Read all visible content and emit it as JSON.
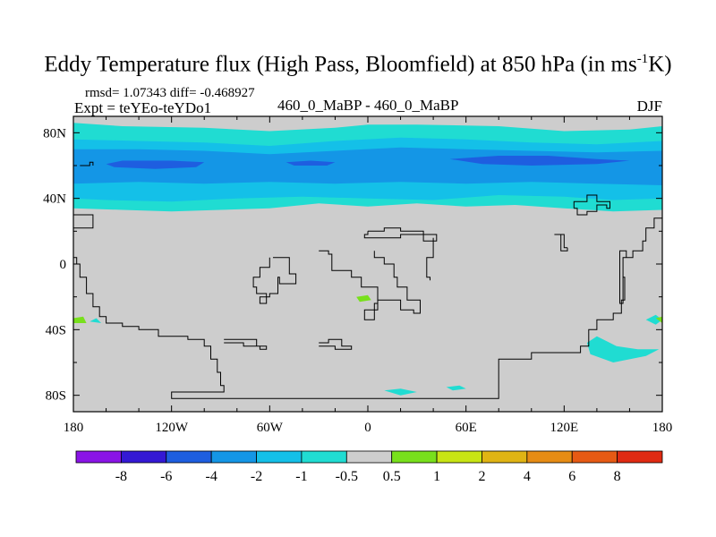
{
  "title": {
    "main": "Eddy Temperature flux (High Pass, Bloomfield) at 850 hPa (in ms",
    "sup": "-1",
    "end": "K)"
  },
  "stats": {
    "rmsd_label": "rmsd=",
    "rmsd_value": "1.07343",
    "diff_label": "diff=",
    "diff_value": "-0.468927"
  },
  "expt": "Expt = teYEo-teYDo1",
  "diff_name": "460_0_MaBP - 460_0_MaBP",
  "season": "DJF",
  "chart_data": {
    "type": "heatmap",
    "projection": "cylindrical-equidistant",
    "xlim": [
      -180,
      180
    ],
    "ylim": [
      -90,
      90
    ],
    "x_ticks": [
      {
        "value": -180,
        "label": "180"
      },
      {
        "value": -120,
        "label": "120W"
      },
      {
        "value": -60,
        "label": "60W"
      },
      {
        "value": 0,
        "label": "0"
      },
      {
        "value": 60,
        "label": "60E"
      },
      {
        "value": 120,
        "label": "120E"
      },
      {
        "value": 180,
        "label": "180"
      }
    ],
    "y_ticks": [
      {
        "value": 80,
        "label": "80N"
      },
      {
        "value": 40,
        "label": "40N"
      },
      {
        "value": 0,
        "label": "0"
      },
      {
        "value": -40,
        "label": "40S"
      },
      {
        "value": -80,
        "label": "80S"
      }
    ],
    "background_color": "#cdcdcd",
    "contour_levels": [
      -8,
      -6,
      -4,
      -2,
      -1,
      -0.5,
      0.5,
      1,
      2,
      4,
      6,
      8
    ],
    "colorbar_colors": [
      "#8a14e6",
      "#3419d4",
      "#1e5ee0",
      "#1496e6",
      "#14c0e8",
      "#20dcd2",
      "#cdcdcd",
      "#78e01c",
      "#c8e414",
      "#e0b414",
      "#e68c14",
      "#e65a14",
      "#e02a12"
    ],
    "colorbar_labels": [
      "-8",
      "-6",
      "-4",
      "-2",
      "-1",
      "-0.5",
      "0.5",
      "1",
      "2",
      "4",
      "6",
      "8"
    ],
    "regions": [
      {
        "level": "-1 to -0.5",
        "color": "#20dcd2",
        "points": [
          [
            -180,
            86
          ],
          [
            -150,
            84
          ],
          [
            -100,
            83
          ],
          [
            -60,
            81
          ],
          [
            -20,
            83
          ],
          [
            0,
            85
          ],
          [
            30,
            85
          ],
          [
            80,
            84
          ],
          [
            120,
            81
          ],
          [
            160,
            82
          ],
          [
            180,
            84
          ],
          [
            180,
            33
          ],
          [
            150,
            32
          ],
          [
            120,
            34
          ],
          [
            90,
            36
          ],
          [
            60,
            35
          ],
          [
            30,
            37
          ],
          [
            0,
            35
          ],
          [
            -30,
            37
          ],
          [
            -60,
            34
          ],
          [
            -90,
            33
          ],
          [
            -120,
            32
          ],
          [
            -150,
            33
          ],
          [
            -180,
            34
          ]
        ]
      },
      {
        "level": "-2 to -1",
        "color": "#14c0e8",
        "points": [
          [
            -180,
            76
          ],
          [
            -140,
            75
          ],
          [
            -100,
            74
          ],
          [
            -60,
            72
          ],
          [
            -20,
            75
          ],
          [
            20,
            77
          ],
          [
            60,
            76
          ],
          [
            100,
            74
          ],
          [
            140,
            73
          ],
          [
            180,
            75
          ],
          [
            180,
            40
          ],
          [
            150,
            39
          ],
          [
            120,
            41
          ],
          [
            80,
            42
          ],
          [
            40,
            39
          ],
          [
            0,
            40
          ],
          [
            -40,
            41
          ],
          [
            -80,
            40
          ],
          [
            -120,
            38
          ],
          [
            -160,
            39
          ],
          [
            -180,
            40
          ]
        ]
      },
      {
        "level": "-4 to -2",
        "color": "#1496e6",
        "points": [
          [
            -180,
            70
          ],
          [
            -140,
            70
          ],
          [
            -100,
            69
          ],
          [
            -60,
            67
          ],
          [
            -20,
            69
          ],
          [
            20,
            71
          ],
          [
            60,
            70
          ],
          [
            100,
            69
          ],
          [
            140,
            68
          ],
          [
            180,
            69
          ],
          [
            180,
            48
          ],
          [
            140,
            49
          ],
          [
            100,
            50
          ],
          [
            60,
            49
          ],
          [
            20,
            50
          ],
          [
            -20,
            49
          ],
          [
            -60,
            50
          ],
          [
            -100,
            49
          ],
          [
            -140,
            50
          ],
          [
            -180,
            49
          ]
        ]
      },
      {
        "level": "< -4",
        "color": "#1e5ee0",
        "points": [
          [
            -160,
            61
          ],
          [
            -150,
            63
          ],
          [
            -120,
            63
          ],
          [
            -100,
            62
          ],
          [
            -105,
            59
          ],
          [
            -130,
            58
          ],
          [
            -155,
            59
          ]
        ]
      },
      {
        "level": "< -4",
        "color": "#1e5ee0",
        "points": [
          [
            -50,
            62
          ],
          [
            -35,
            63
          ],
          [
            -20,
            62
          ],
          [
            -25,
            60
          ],
          [
            -45,
            60
          ]
        ]
      },
      {
        "level": "< -4",
        "color": "#1e5ee0",
        "points": [
          [
            50,
            64
          ],
          [
            80,
            66
          ],
          [
            110,
            66
          ],
          [
            140,
            64
          ],
          [
            160,
            63
          ],
          [
            140,
            61
          ],
          [
            100,
            60
          ],
          [
            70,
            61
          ]
        ]
      },
      {
        "level": "-1 to -0.5",
        "color": "#20dcd2",
        "points": [
          [
            134,
            -48
          ],
          [
            140,
            -44
          ],
          [
            152,
            -50
          ],
          [
            165,
            -52
          ],
          [
            178,
            -52
          ],
          [
            170,
            -56
          ],
          [
            150,
            -60
          ],
          [
            136,
            -55
          ]
        ]
      },
      {
        "level": "-1 to -0.5",
        "color": "#20dcd2",
        "points": [
          [
            170,
            -34
          ],
          [
            176,
            -31
          ],
          [
            180,
            -34
          ],
          [
            176,
            -37
          ]
        ]
      },
      {
        "level": "-1 to -0.5",
        "color": "#20dcd2",
        "points": [
          [
            10,
            -77
          ],
          [
            20,
            -76
          ],
          [
            30,
            -78
          ],
          [
            20,
            -80
          ]
        ]
      },
      {
        "level": "-1 to -0.5",
        "color": "#20dcd2",
        "points": [
          [
            48,
            -75
          ],
          [
            56,
            -74
          ],
          [
            60,
            -76
          ],
          [
            52,
            -77
          ]
        ]
      },
      {
        "level": "-1 to -0.5",
        "color": "#20dcd2",
        "points": [
          [
            -170,
            -35
          ],
          [
            -166,
            -33
          ],
          [
            -163,
            -36
          ]
        ]
      },
      {
        "level": "0.5 to 1",
        "color": "#78e01c",
        "points": [
          [
            -7,
            -20
          ],
          [
            0,
            -19
          ],
          [
            2,
            -22
          ],
          [
            -5,
            -23
          ]
        ]
      },
      {
        "level": "0.5 to 1",
        "color": "#78e01c",
        "points": [
          [
            -180,
            -33
          ],
          [
            -174,
            -32
          ],
          [
            -172,
            -36
          ],
          [
            -180,
            -36
          ]
        ]
      },
      {
        "level": "0.5 to 1",
        "color": "#78e01c",
        "points": [
          [
            176,
            -33
          ],
          [
            180,
            -32
          ],
          [
            180,
            -36
          ]
        ]
      }
    ],
    "coastlines": [
      [
        [
          -180,
          30
        ],
        [
          -168,
          28
        ],
        [
          -168,
          22
        ],
        [
          -180,
          22
        ]
      ],
      [
        [
          -180,
          4
        ],
        [
          -178,
          0
        ],
        [
          -176,
          -8
        ],
        [
          -172,
          -18
        ],
        [
          -168,
          -26
        ],
        [
          -164,
          -32
        ],
        [
          -160,
          -36
        ],
        [
          -150,
          -38
        ],
        [
          -140,
          -40
        ],
        [
          -128,
          -44
        ],
        [
          -110,
          -46
        ],
        [
          -100,
          -50
        ],
        [
          -96,
          -58
        ],
        [
          -92,
          -66
        ],
        [
          -90,
          -74
        ],
        [
          -88,
          -78
        ],
        [
          -120,
          -78
        ],
        [
          -120,
          -82
        ],
        [
          80,
          -82
        ],
        [
          80,
          -58
        ],
        [
          100,
          -54
        ],
        [
          130,
          -50
        ],
        [
          135,
          -40
        ],
        [
          140,
          -34
        ],
        [
          150,
          -30
        ],
        [
          155,
          -22
        ],
        [
          157,
          -8
        ],
        [
          156,
          4
        ],
        [
          158,
          8
        ],
        [
          154,
          0
        ],
        [
          154,
          -24
        ],
        [
          156,
          4
        ],
        [
          162,
          8
        ],
        [
          168,
          14
        ],
        [
          170,
          22
        ],
        [
          175,
          28
        ],
        [
          180,
          30
        ]
      ],
      [
        [
          -58,
          4
        ],
        [
          -50,
          4
        ],
        [
          -48,
          -6
        ],
        [
          -44,
          -12
        ],
        [
          -50,
          -12
        ],
        [
          -54,
          -8
        ],
        [
          -55,
          -18
        ],
        [
          -60,
          -20
        ],
        [
          -66,
          -24
        ],
        [
          -62,
          -18
        ],
        [
          -68,
          -14
        ],
        [
          -70,
          -8
        ],
        [
          -66,
          -2
        ],
        [
          -60,
          4
        ]
      ],
      [
        [
          -30,
          8
        ],
        [
          -24,
          6
        ],
        [
          -22,
          -4
        ],
        [
          -10,
          -8
        ],
        [
          -4,
          -14
        ],
        [
          2,
          -14
        ],
        [
          6,
          -24
        ],
        [
          4,
          -34
        ],
        [
          -2,
          -34
        ],
        [
          -2,
          -28
        ],
        [
          6,
          -22
        ],
        [
          18,
          -22
        ],
        [
          20,
          -28
        ],
        [
          28,
          -30
        ],
        [
          32,
          -22
        ],
        [
          24,
          -14
        ],
        [
          18,
          -8
        ],
        [
          16,
          0
        ],
        [
          10,
          4
        ],
        [
          4,
          8
        ]
      ],
      [
        [
          0,
          20
        ],
        [
          10,
          22
        ],
        [
          20,
          20
        ],
        [
          30,
          20
        ],
        [
          34,
          14
        ],
        [
          40,
          14
        ],
        [
          42,
          18
        ],
        [
          30,
          18
        ],
        [
          20,
          16
        ],
        [
          10,
          16
        ],
        [
          0,
          16
        ],
        [
          -2,
          18
        ],
        [
          0,
          20
        ]
      ],
      [
        [
          -88,
          -48
        ],
        [
          -76,
          -50
        ],
        [
          -66,
          -52
        ],
        [
          -62,
          -50
        ],
        [
          -68,
          -46
        ],
        [
          -80,
          -46
        ],
        [
          -88,
          -46
        ]
      ],
      [
        [
          -30,
          -50
        ],
        [
          -20,
          -52
        ],
        [
          -10,
          -50
        ],
        [
          -16,
          -46
        ],
        [
          -24,
          -48
        ],
        [
          -30,
          -48
        ]
      ],
      [
        [
          40,
          16
        ],
        [
          40,
          4
        ],
        [
          36,
          0
        ],
        [
          36,
          -8
        ],
        [
          38,
          -10
        ]
      ],
      [
        [
          122,
          10
        ],
        [
          120,
          18
        ],
        [
          114,
          18
        ],
        [
          118,
          8
        ],
        [
          122,
          10
        ]
      ],
      [
        [
          126,
          34
        ],
        [
          128,
          30
        ],
        [
          134,
          32
        ],
        [
          140,
          36
        ],
        [
          146,
          34
        ],
        [
          148,
          38
        ],
        [
          140,
          42
        ],
        [
          134,
          38
        ],
        [
          128,
          38
        ],
        [
          126,
          34
        ]
      ],
      [
        [
          -176,
          60
        ],
        [
          -170,
          62
        ],
        [
          -168,
          60
        ]
      ]
    ]
  }
}
